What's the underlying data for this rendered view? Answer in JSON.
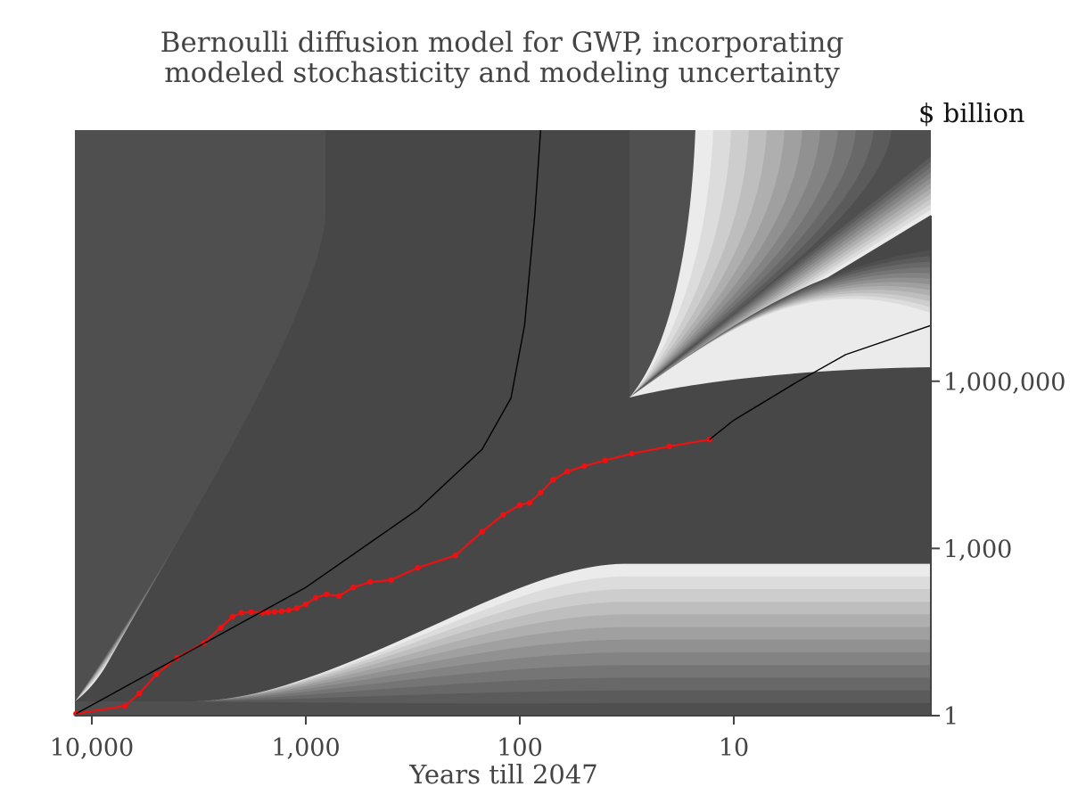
{
  "chart_data": {
    "type": "area",
    "title": "Bernoulli diffusion model for GWP, incorporating modeled stochasticity and modeling uncertainty",
    "title_lines": [
      "Bernoulli diffusion model for GWP, incorporating",
      "modeled stochasticity and modeling uncertainty"
    ],
    "xlabel": "Years till 2047",
    "ylabel": "$ billion",
    "x_scale": "log",
    "x_reversed": true,
    "y_scale": "log",
    "y_axis_position": "right",
    "xlim": [
      12000,
      1.2
    ],
    "ylim": [
      1,
      32000000000
    ],
    "x_ticks": [
      {
        "value": 10000,
        "label": "10,000"
      },
      {
        "value": 1000,
        "label": "1,000"
      },
      {
        "value": 100,
        "label": "100"
      },
      {
        "value": 10,
        "label": "10"
      }
    ],
    "y_ticks": [
      {
        "value": 1,
        "label": "1"
      },
      {
        "value": 1000,
        "label": "1,000"
      },
      {
        "value": 1000000,
        "label": "1,000,000"
      }
    ],
    "grid": false,
    "legend": "none",
    "series": [
      {
        "role": "observed GWP",
        "color": "#ee1111",
        "x": [
          11847,
          7000,
          6000,
          5000,
          4000,
          3000,
          2500,
          2200,
          2000,
          1800,
          1600,
          1500,
          1400,
          1300,
          1200,
          1100,
          1000,
          900,
          800,
          700,
          600,
          500,
          400,
          300,
          200,
          150,
          120,
          100,
          90,
          80,
          70,
          60,
          50,
          40,
          30,
          20,
          13
        ],
        "y": [
          1.08,
          1.5,
          2.5,
          5.5,
          11,
          20,
          38,
          60,
          70,
          72,
          70,
          71,
          73,
          75,
          78,
          85,
          100,
          130,
          150,
          140,
          200,
          250,
          270,
          450,
          750,
          2000,
          4000,
          6000,
          6600,
          10000,
          17000,
          24000,
          30000,
          38000,
          50000,
          68000,
          90000
        ]
      },
      {
        "role": "median path before 2047",
        "color": "#000000",
        "x": [
          11847,
          1000,
          300,
          150,
          110,
          95,
          85,
          80
        ],
        "y": [
          1.08,
          200,
          5000,
          60000,
          500000,
          10000000,
          1000000000,
          32000000000
        ]
      },
      {
        "role": "median path after 2047",
        "color": "#000000",
        "x": [
          13,
          10,
          5,
          3,
          1.2
        ],
        "y": [
          90000,
          200000,
          1000000,
          3000000,
          10000000
        ]
      }
    ],
    "colors": {
      "dark_band": "#474747",
      "band_shades": [
        "#ebebeb",
        "#dcdcdc",
        "#cdcdcd",
        "#bebebe",
        "#afafaf",
        "#a0a0a0",
        "#919191",
        "#838383",
        "#757575",
        "#686868",
        "#5b5b5b",
        "#4f4f4f"
      ],
      "observed": "#ee1111",
      "median": "#000000"
    }
  }
}
